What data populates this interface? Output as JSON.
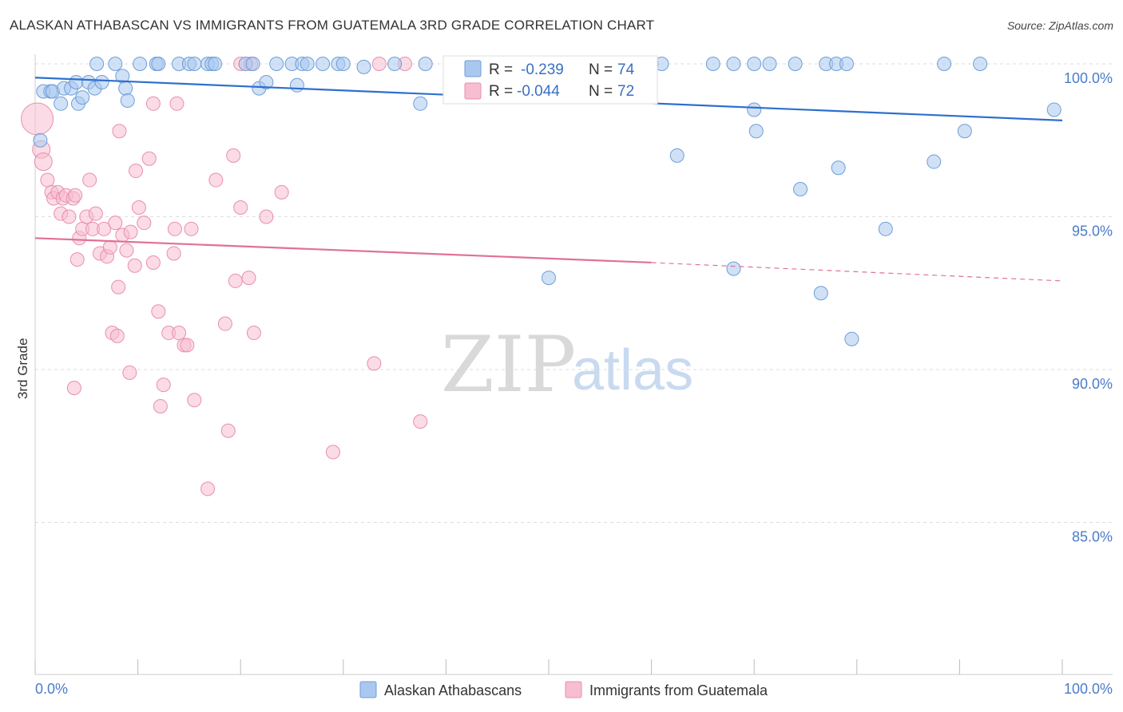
{
  "title": "ALASKAN ATHABASCAN VS IMMIGRANTS FROM GUATEMALA 3RD GRADE CORRELATION CHART",
  "source": "Source: ZipAtlas.com",
  "watermark": {
    "zip": "ZIP",
    "atlas": "atlas"
  },
  "colors": {
    "blue_fill": "#aac8ef",
    "blue_stroke": "#6e9ed9",
    "blue_line": "#2f6fce",
    "pink_fill": "#f7bdd0",
    "pink_stroke": "#e88fae",
    "pink_line": "#e0709a",
    "tick_text": "#4a7cc9",
    "grid": "#dddddd"
  },
  "legend_stats": [
    {
      "r_label": "R =",
      "r_value": "-0.239",
      "n_label": "N =",
      "n_value": "74"
    },
    {
      "r_label": "R =",
      "r_value": "-0.044",
      "n_label": "N =",
      "n_value": "72"
    }
  ],
  "bottom_legend": [
    "Alaskan Athabascans",
    "Immigrants from Guatemala"
  ],
  "chart_data": {
    "type": "scatter",
    "title": "ALASKAN ATHABASCAN VS IMMIGRANTS FROM GUATEMALA 3RD GRADE CORRELATION CHART",
    "xlabel": "",
    "ylabel": "3rd Grade",
    "xlim": [
      0,
      100
    ],
    "ylim": [
      80.5,
      100.8
    ],
    "x_tick_labels": [
      "0.0%",
      "100.0%"
    ],
    "y_ticks": [
      100,
      95,
      90,
      85
    ],
    "y_tick_labels": [
      "100.0%",
      "95.0%",
      "90.0%",
      "85.0%"
    ],
    "grid": true,
    "legend_position": "top-center",
    "series": [
      {
        "name": "Alaskan Athabascans",
        "r": -0.239,
        "n": 74,
        "trend": {
          "x": [
            0,
            100
          ],
          "y": [
            99.55,
            98.15
          ]
        },
        "points": [
          [
            0.5,
            97.5
          ],
          [
            0.8,
            99.1
          ],
          [
            1.5,
            99.1
          ],
          [
            1.7,
            99.1
          ],
          [
            2.5,
            98.7
          ],
          [
            2.8,
            99.2
          ],
          [
            3.5,
            99.2
          ],
          [
            4.0,
            99.4
          ],
          [
            4.2,
            98.7
          ],
          [
            4.6,
            98.9
          ],
          [
            5.2,
            99.4
          ],
          [
            5.8,
            99.2
          ],
          [
            6.5,
            99.4
          ],
          [
            8.5,
            99.6
          ],
          [
            8.8,
            99.2
          ],
          [
            9.0,
            98.8
          ],
          [
            6.0,
            100.0
          ],
          [
            7.8,
            100.0
          ],
          [
            10.2,
            100.0
          ],
          [
            11.8,
            100.0
          ],
          [
            12.0,
            100.0
          ],
          [
            14.0,
            100.0
          ],
          [
            15.0,
            100.0
          ],
          [
            15.5,
            100.0
          ],
          [
            16.8,
            100.0
          ],
          [
            17.2,
            100.0
          ],
          [
            17.5,
            100.0
          ],
          [
            20.5,
            100.0
          ],
          [
            21.2,
            100.0
          ],
          [
            21.8,
            99.2
          ],
          [
            22.5,
            99.4
          ],
          [
            23.5,
            100.0
          ],
          [
            25.0,
            100.0
          ],
          [
            25.5,
            99.3
          ],
          [
            26.0,
            100.0
          ],
          [
            26.5,
            100.0
          ],
          [
            28.0,
            100.0
          ],
          [
            29.5,
            100.0
          ],
          [
            30.0,
            100.0
          ],
          [
            32.0,
            99.9
          ],
          [
            35.0,
            100.0
          ],
          [
            37.5,
            98.7
          ],
          [
            38.0,
            100.0
          ],
          [
            41.0,
            100.0
          ],
          [
            50.5,
            100.0
          ],
          [
            52.0,
            100.0
          ],
          [
            53.0,
            100.0
          ],
          [
            55.0,
            100.0
          ],
          [
            57.0,
            100.0
          ],
          [
            60.0,
            100.0
          ],
          [
            61.0,
            100.0
          ],
          [
            66.0,
            100.0
          ],
          [
            68.0,
            100.0
          ],
          [
            70.0,
            100.0
          ],
          [
            71.5,
            100.0
          ],
          [
            74.0,
            100.0
          ],
          [
            77.0,
            100.0
          ],
          [
            78.0,
            100.0
          ],
          [
            79.0,
            100.0
          ],
          [
            62.5,
            97.0
          ],
          [
            70.0,
            98.5
          ],
          [
            70.2,
            97.8
          ],
          [
            74.5,
            95.9
          ],
          [
            78.2,
            96.6
          ],
          [
            82.8,
            94.6
          ],
          [
            87.5,
            96.8
          ],
          [
            90.5,
            97.8
          ],
          [
            99.2,
            98.5
          ],
          [
            50.0,
            93.0
          ],
          [
            68.0,
            93.3
          ],
          [
            76.5,
            92.5
          ],
          [
            79.5,
            91.0
          ],
          [
            88.5,
            100.0
          ],
          [
            92.0,
            100.0
          ]
        ]
      },
      {
        "name": "Immigrants from Guatemala",
        "r": -0.044,
        "n": 72,
        "trend": {
          "x": [
            0,
            60
          ],
          "y": [
            94.3,
            93.5
          ],
          "dashed_to": {
            "x": 100,
            "y": 92.9
          }
        },
        "points": [
          [
            0.2,
            98.2
          ],
          [
            0.6,
            97.2
          ],
          [
            0.8,
            96.8
          ],
          [
            1.2,
            96.2
          ],
          [
            1.6,
            95.8
          ],
          [
            1.8,
            95.6
          ],
          [
            2.2,
            95.8
          ],
          [
            2.5,
            95.1
          ],
          [
            2.7,
            95.6
          ],
          [
            3.0,
            95.7
          ],
          [
            3.3,
            95.0
          ],
          [
            3.7,
            95.6
          ],
          [
            3.9,
            95.7
          ],
          [
            4.1,
            93.6
          ],
          [
            4.3,
            94.3
          ],
          [
            4.6,
            94.6
          ],
          [
            5.0,
            95.0
          ],
          [
            5.3,
            96.2
          ],
          [
            5.6,
            94.6
          ],
          [
            5.9,
            95.1
          ],
          [
            6.3,
            93.8
          ],
          [
            6.7,
            94.6
          ],
          [
            7.0,
            93.7
          ],
          [
            7.3,
            94.0
          ],
          [
            7.8,
            94.8
          ],
          [
            8.1,
            92.7
          ],
          [
            8.5,
            94.4
          ],
          [
            8.9,
            93.9
          ],
          [
            9.3,
            94.5
          ],
          [
            9.7,
            93.4
          ],
          [
            10.1,
            95.3
          ],
          [
            10.6,
            94.8
          ],
          [
            11.1,
            96.9
          ],
          [
            11.5,
            93.5
          ],
          [
            12.0,
            91.9
          ],
          [
            12.2,
            88.8
          ],
          [
            12.5,
            89.5
          ],
          [
            13.0,
            91.2
          ],
          [
            13.5,
            93.8
          ],
          [
            13.6,
            94.6
          ],
          [
            14.0,
            91.2
          ],
          [
            14.5,
            90.8
          ],
          [
            14.8,
            90.8
          ],
          [
            15.2,
            94.6
          ],
          [
            15.5,
            89.0
          ],
          [
            16.8,
            86.1
          ],
          [
            17.6,
            96.2
          ],
          [
            18.5,
            91.5
          ],
          [
            18.8,
            88.0
          ],
          [
            19.5,
            92.9
          ],
          [
            20.0,
            95.3
          ],
          [
            20.8,
            93.0
          ],
          [
            21.3,
            91.2
          ],
          [
            22.5,
            95.0
          ],
          [
            24.0,
            95.8
          ],
          [
            3.8,
            89.4
          ],
          [
            7.5,
            91.2
          ],
          [
            8.0,
            91.1
          ],
          [
            9.2,
            89.9
          ],
          [
            13.8,
            98.7
          ],
          [
            11.5,
            98.7
          ],
          [
            8.2,
            97.8
          ],
          [
            9.8,
            96.5
          ],
          [
            19.3,
            97.0
          ],
          [
            29.0,
            87.3
          ],
          [
            33.0,
            90.2
          ],
          [
            37.5,
            88.3
          ],
          [
            20.0,
            100.0
          ],
          [
            21.0,
            100.0
          ],
          [
            33.5,
            100.0
          ],
          [
            36.0,
            100.0
          ],
          [
            60.0,
            100.0
          ]
        ]
      }
    ]
  }
}
